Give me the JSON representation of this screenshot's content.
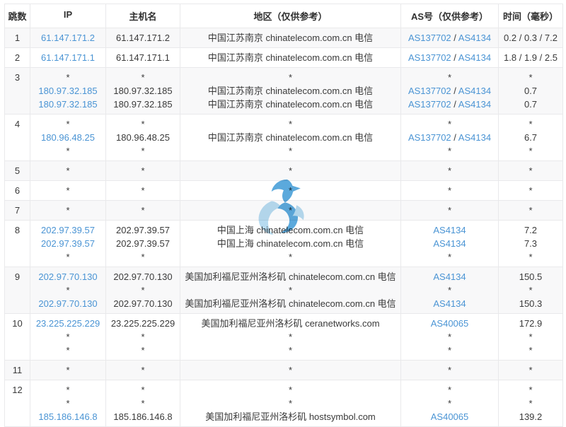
{
  "table": {
    "columns": [
      {
        "key": "hop",
        "label": "跳数"
      },
      {
        "key": "ip",
        "label": "IP"
      },
      {
        "key": "host",
        "label": "主机名"
      },
      {
        "key": "region",
        "label": "地区（仅供参考）"
      },
      {
        "key": "asn",
        "label": "AS号（仅供参考）"
      },
      {
        "key": "time",
        "label": "时间（毫秒）"
      }
    ],
    "rows": [
      {
        "hop": "1",
        "lines": [
          {
            "ip": "61.147.171.2",
            "host": "61.147.171.2",
            "region": "中国江苏南京 chinatelecom.com.cn 电信",
            "asn": "AS137702 / AS4134",
            "time": "0.2 / 0.3 / 7.2"
          }
        ]
      },
      {
        "hop": "2",
        "lines": [
          {
            "ip": "61.147.171.1",
            "host": "61.147.171.1",
            "region": "中国江苏南京 chinatelecom.com.cn 电信",
            "asn": "AS137702 / AS4134",
            "time": "1.8 / 1.9 / 2.5"
          }
        ]
      },
      {
        "hop": "3",
        "lines": [
          {
            "ip": "*",
            "host": "*",
            "region": "*",
            "asn": "*",
            "time": "*"
          },
          {
            "ip": "180.97.32.185",
            "host": "180.97.32.185",
            "region": "中国江苏南京 chinatelecom.com.cn 电信",
            "asn": "AS137702 / AS4134",
            "time": "0.7"
          },
          {
            "ip": "180.97.32.185",
            "host": "180.97.32.185",
            "region": "中国江苏南京 chinatelecom.com.cn 电信",
            "asn": "AS137702 / AS4134",
            "time": "0.7"
          }
        ]
      },
      {
        "hop": "4",
        "lines": [
          {
            "ip": "*",
            "host": "*",
            "region": "*",
            "asn": "*",
            "time": "*"
          },
          {
            "ip": "180.96.48.25",
            "host": "180.96.48.25",
            "region": "中国江苏南京 chinatelecom.com.cn 电信",
            "asn": "AS137702 / AS4134",
            "time": "6.7"
          },
          {
            "ip": "*",
            "host": "*",
            "region": "*",
            "asn": "*",
            "time": "*"
          }
        ]
      },
      {
        "hop": "5",
        "lines": [
          {
            "ip": "*",
            "host": "*",
            "region": "*",
            "asn": "*",
            "time": "*"
          }
        ]
      },
      {
        "hop": "6",
        "lines": [
          {
            "ip": "*",
            "host": "*",
            "region": "*",
            "asn": "*",
            "time": "*"
          }
        ]
      },
      {
        "hop": "7",
        "lines": [
          {
            "ip": "*",
            "host": "*",
            "region": "*",
            "asn": "*",
            "time": "*"
          }
        ]
      },
      {
        "hop": "8",
        "lines": [
          {
            "ip": "202.97.39.57",
            "host": "202.97.39.57",
            "region": "中国上海 chinatelecom.com.cn 电信",
            "asn": "AS4134",
            "time": "7.2"
          },
          {
            "ip": "202.97.39.57",
            "host": "202.97.39.57",
            "region": "中国上海 chinatelecom.com.cn 电信",
            "asn": "AS4134",
            "time": "7.3"
          },
          {
            "ip": "*",
            "host": "*",
            "region": "*",
            "asn": "*",
            "time": "*"
          }
        ]
      },
      {
        "hop": "9",
        "lines": [
          {
            "ip": "202.97.70.130",
            "host": "202.97.70.130",
            "region": "美国加利福尼亚州洛杉矶 chinatelecom.com.cn 电信",
            "asn": "AS4134",
            "time": "150.5"
          },
          {
            "ip": "*",
            "host": "*",
            "region": "*",
            "asn": "*",
            "time": "*"
          },
          {
            "ip": "202.97.70.130",
            "host": "202.97.70.130",
            "region": "美国加利福尼亚州洛杉矶 chinatelecom.com.cn 电信",
            "asn": "AS4134",
            "time": "150.3"
          }
        ]
      },
      {
        "hop": "10",
        "lines": [
          {
            "ip": "23.225.225.229",
            "host": "23.225.225.229",
            "region": "美国加利福尼亚州洛杉矶 ceranetworks.com",
            "asn": "AS40065",
            "time": "172.9"
          },
          {
            "ip": "*",
            "host": "*",
            "region": "*",
            "asn": "*",
            "time": "*"
          },
          {
            "ip": "*",
            "host": "*",
            "region": "*",
            "asn": "*",
            "time": "*"
          }
        ]
      },
      {
        "hop": "11",
        "lines": [
          {
            "ip": "*",
            "host": "*",
            "region": "*",
            "asn": "*",
            "time": "*"
          }
        ]
      },
      {
        "hop": "12",
        "lines": [
          {
            "ip": "*",
            "host": "*",
            "region": "*",
            "asn": "*",
            "time": "*"
          },
          {
            "ip": "*",
            "host": "*",
            "region": "*",
            "asn": "*",
            "time": "*"
          },
          {
            "ip": "185.186.146.8",
            "host": "185.186.146.8",
            "region": "美国加利福尼亚州洛杉矶 hostsymbol.com",
            "asn": "AS40065",
            "time": "139.2"
          }
        ]
      }
    ]
  },
  "watermark": {
    "icon": "brand-logo-watermark",
    "color_primary": "#4da2d9",
    "color_light": "#b1d8ef"
  },
  "colors": {
    "link": "#4a94d4",
    "text": "#3a3a3a",
    "header_text": "#303030",
    "stripe": "#f8f8f9",
    "border": "#e9e9eb"
  }
}
